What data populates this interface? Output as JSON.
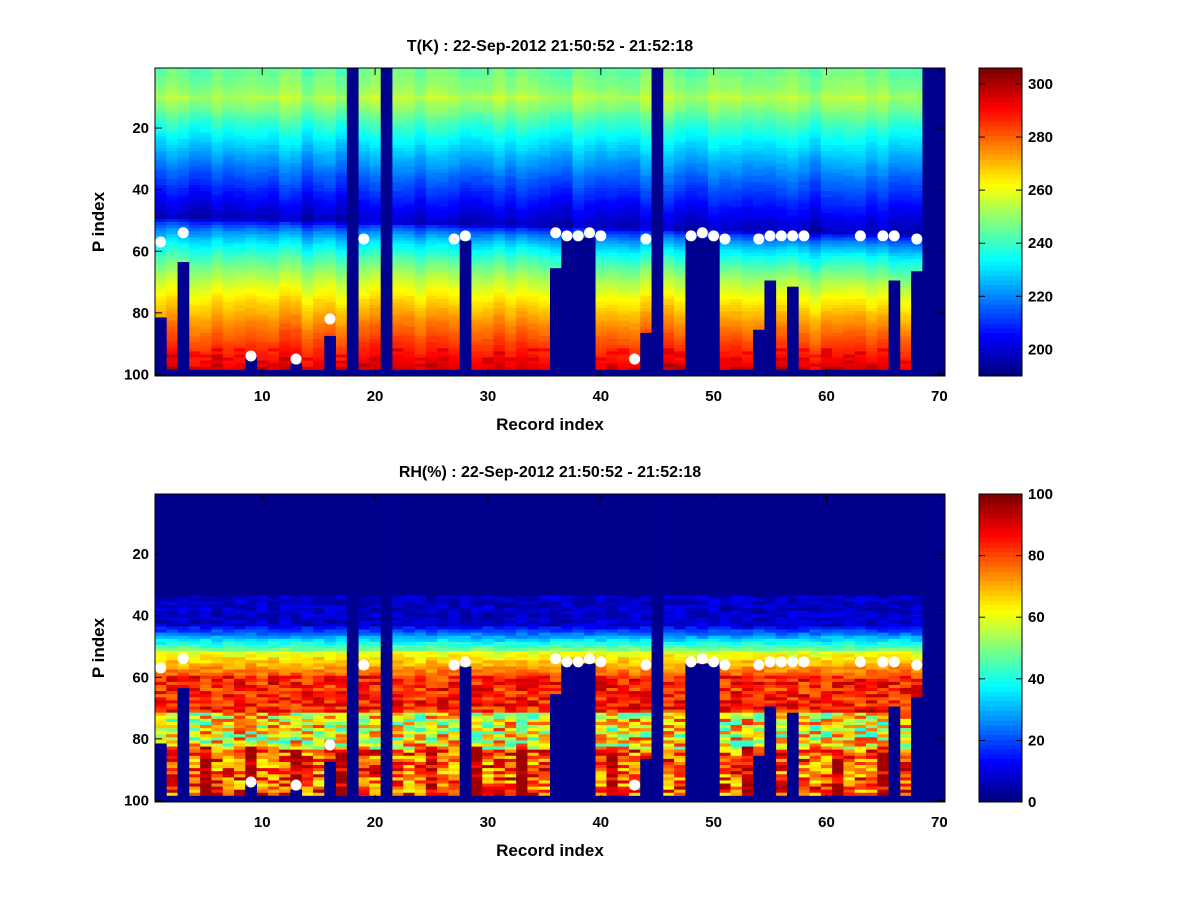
{
  "chart_data": [
    {
      "type": "heatmap",
      "title": "T(K) : 22-Sep-2012 21:50:52 - 21:52:18",
      "xlabel": "Record index",
      "ylabel": "P index",
      "xlim": [
        0.5,
        70.5
      ],
      "ylim": [
        0.5,
        100.5
      ],
      "y_reversed": true,
      "x_ticks": [
        10,
        20,
        30,
        40,
        50,
        60,
        70
      ],
      "y_ticks": [
        20,
        40,
        60,
        80,
        100
      ],
      "colorbar": {
        "colormap": "jet",
        "range": [
          190,
          306
        ],
        "ticks": [
          200,
          220,
          240,
          260,
          280,
          300
        ]
      },
      "field": {
        "variable": "T",
        "units": "K",
        "surface_value": 296,
        "tropopause_min": 196,
        "top_value": 244
      },
      "missing_records": [
        18,
        21,
        45,
        69,
        70
      ],
      "fill_masks": [
        {
          "record": 1,
          "from_p": 82
        },
        {
          "record": 3,
          "from_p": 64
        },
        {
          "record": 9,
          "from_p": 95
        },
        {
          "record": 13,
          "from_p": 97
        },
        {
          "record": 16,
          "from_p": 88
        },
        {
          "record": 28,
          "from_p": 57
        },
        {
          "record": 36,
          "from_p": 66
        },
        {
          "record": 37,
          "from_p": 56
        },
        {
          "record": 38,
          "from_p": 56
        },
        {
          "record": 39,
          "from_p": 56
        },
        {
          "record": 44,
          "from_p": 87
        },
        {
          "record": 48,
          "from_p": 56
        },
        {
          "record": 49,
          "from_p": 56
        },
        {
          "record": 50,
          "from_p": 56
        },
        {
          "record": 54,
          "from_p": 86
        },
        {
          "record": 55,
          "from_p": 70
        },
        {
          "record": 57,
          "from_p": 72
        },
        {
          "record": 66,
          "from_p": 70
        },
        {
          "record": 68,
          "from_p": 67
        }
      ],
      "markers": [
        {
          "x": 1,
          "y": 57
        },
        {
          "x": 3,
          "y": 54
        },
        {
          "x": 9,
          "y": 94
        },
        {
          "x": 13,
          "y": 95
        },
        {
          "x": 16,
          "y": 82
        },
        {
          "x": 19,
          "y": 56
        },
        {
          "x": 27,
          "y": 56
        },
        {
          "x": 28,
          "y": 55
        },
        {
          "x": 36,
          "y": 54
        },
        {
          "x": 37,
          "y": 55
        },
        {
          "x": 38,
          "y": 55
        },
        {
          "x": 39,
          "y": 54
        },
        {
          "x": 40,
          "y": 55
        },
        {
          "x": 43,
          "y": 95
        },
        {
          "x": 44,
          "y": 56
        },
        {
          "x": 48,
          "y": 55
        },
        {
          "x": 49,
          "y": 54
        },
        {
          "x": 50,
          "y": 55
        },
        {
          "x": 51,
          "y": 56
        },
        {
          "x": 54,
          "y": 56
        },
        {
          "x": 55,
          "y": 55
        },
        {
          "x": 56,
          "y": 55
        },
        {
          "x": 57,
          "y": 55
        },
        {
          "x": 58,
          "y": 55
        },
        {
          "x": 63,
          "y": 55
        },
        {
          "x": 65,
          "y": 55
        },
        {
          "x": 66,
          "y": 55
        },
        {
          "x": 68,
          "y": 56
        }
      ]
    },
    {
      "type": "heatmap",
      "title": "RH(%) : 22-Sep-2012 21:50:52 - 21:52:18",
      "xlabel": "Record index",
      "ylabel": "P index",
      "xlim": [
        0.5,
        70.5
      ],
      "ylim": [
        0.5,
        100.5
      ],
      "y_reversed": true,
      "x_ticks": [
        10,
        20,
        30,
        40,
        50,
        60,
        70
      ],
      "y_ticks": [
        20,
        40,
        60,
        80,
        100
      ],
      "colorbar": {
        "colormap": "jet",
        "range": [
          0,
          100
        ],
        "ticks": [
          0,
          20,
          40,
          60,
          80,
          100
        ]
      },
      "field": {
        "variable": "RH",
        "units": "%",
        "dry_above_p": 34,
        "moist_layer_p": [
          54,
          70
        ],
        "surface_max": 97
      },
      "missing_records": [
        18,
        21,
        45,
        69,
        70
      ],
      "fill_masks": [
        {
          "record": 1,
          "from_p": 82
        },
        {
          "record": 3,
          "from_p": 64
        },
        {
          "record": 9,
          "from_p": 95
        },
        {
          "record": 13,
          "from_p": 97
        },
        {
          "record": 16,
          "from_p": 88
        },
        {
          "record": 28,
          "from_p": 57
        },
        {
          "record": 36,
          "from_p": 66
        },
        {
          "record": 37,
          "from_p": 56
        },
        {
          "record": 38,
          "from_p": 56
        },
        {
          "record": 39,
          "from_p": 56
        },
        {
          "record": 44,
          "from_p": 87
        },
        {
          "record": 48,
          "from_p": 56
        },
        {
          "record": 49,
          "from_p": 56
        },
        {
          "record": 50,
          "from_p": 56
        },
        {
          "record": 54,
          "from_p": 86
        },
        {
          "record": 55,
          "from_p": 70
        },
        {
          "record": 57,
          "from_p": 72
        },
        {
          "record": 66,
          "from_p": 70
        },
        {
          "record": 68,
          "from_p": 67
        }
      ],
      "markers": [
        {
          "x": 1,
          "y": 57
        },
        {
          "x": 3,
          "y": 54
        },
        {
          "x": 9,
          "y": 94
        },
        {
          "x": 13,
          "y": 95
        },
        {
          "x": 16,
          "y": 82
        },
        {
          "x": 19,
          "y": 56
        },
        {
          "x": 27,
          "y": 56
        },
        {
          "x": 28,
          "y": 55
        },
        {
          "x": 36,
          "y": 54
        },
        {
          "x": 37,
          "y": 55
        },
        {
          "x": 38,
          "y": 55
        },
        {
          "x": 39,
          "y": 54
        },
        {
          "x": 40,
          "y": 55
        },
        {
          "x": 43,
          "y": 95
        },
        {
          "x": 44,
          "y": 56
        },
        {
          "x": 48,
          "y": 55
        },
        {
          "x": 49,
          "y": 54
        },
        {
          "x": 50,
          "y": 55
        },
        {
          "x": 51,
          "y": 56
        },
        {
          "x": 54,
          "y": 56
        },
        {
          "x": 55,
          "y": 55
        },
        {
          "x": 56,
          "y": 55
        },
        {
          "x": 57,
          "y": 55
        },
        {
          "x": 58,
          "y": 55
        },
        {
          "x": 63,
          "y": 55
        },
        {
          "x": 65,
          "y": 55
        },
        {
          "x": 66,
          "y": 55
        },
        {
          "x": 68,
          "y": 56
        }
      ]
    }
  ]
}
